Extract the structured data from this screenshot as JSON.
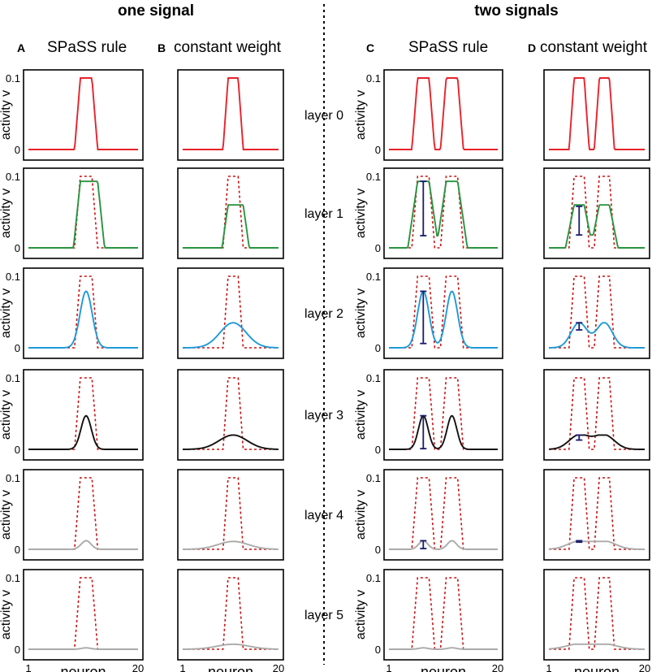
{
  "header": {
    "left": "one signal",
    "right": "two signals"
  },
  "columns": [
    {
      "letter": "A",
      "title": "SPaSS rule"
    },
    {
      "letter": "B",
      "title": "constant weight"
    },
    {
      "letter": "C",
      "title": "SPaSS rule"
    },
    {
      "letter": "D",
      "title": "constant weight"
    }
  ],
  "layers": [
    "layer 0",
    "layer 1",
    "layer 2",
    "layer 3",
    "layer 4",
    "layer 5"
  ],
  "ylabel": "activity v",
  "xlabel": "neuron",
  "ytick_top": "0.1",
  "ytick_bottom": "0",
  "xtick_left": "1",
  "xtick_right": "20",
  "colors": {
    "layer0": "#e8222a",
    "layer1": "#2a9440",
    "layer2": "#1e9ad8",
    "layer3": "#111111",
    "layer4": "#aaaaaa",
    "layer5": "#aaaaaa",
    "input": "#cc1111",
    "errorbar": "#1a1a6e"
  },
  "chart_data": {
    "type": "line",
    "x": [
      1,
      20
    ],
    "ylim": [
      0,
      0.1
    ],
    "xlim": [
      1,
      20
    ],
    "input_one_signal": {
      "x": [
        1,
        9,
        10,
        12,
        13,
        20
      ],
      "y": [
        0,
        0,
        0.1,
        0.1,
        0,
        0
      ]
    },
    "input_two_signals": {
      "x": [
        1,
        5,
        6,
        8,
        9,
        10,
        11,
        13,
        14,
        20
      ],
      "y": [
        0,
        0,
        0.1,
        0.1,
        0,
        0,
        0.1,
        0.1,
        0,
        0
      ]
    },
    "peaks": {
      "A": [
        0.1,
        0.093,
        0.079,
        0.047,
        0.012,
        0.002
      ],
      "B": [
        0.1,
        0.06,
        0.035,
        0.02,
        0.011,
        0.007
      ],
      "C": [
        0.1,
        0.093,
        0.079,
        0.047,
        0.012,
        0.002
      ],
      "D": [
        0.1,
        0.06,
        0.035,
        0.02,
        0.011,
        0.007
      ]
    },
    "valleys_two_signals": {
      "C": [
        0,
        0.017,
        0.003,
        0.001,
        0.0,
        0.0
      ],
      "D": [
        0,
        0.018,
        0.015,
        0.009,
        0.005,
        0.003
      ]
    },
    "error_bars": {
      "C": [
        null,
        [
          0.017,
          0.093
        ],
        [
          0.006,
          0.079
        ],
        [
          0.001,
          0.047
        ],
        [
          0.001,
          0.012
        ],
        null
      ],
      "D": [
        null,
        [
          0.018,
          0.058
        ],
        [
          0.025,
          0.035
        ],
        [
          0.013,
          0.02
        ],
        [
          0.01,
          0.012
        ],
        null
      ]
    }
  }
}
